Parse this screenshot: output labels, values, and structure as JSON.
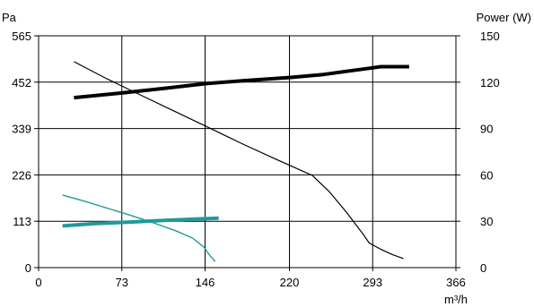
{
  "chart_data": {
    "type": "line",
    "title": "",
    "xlabel": "m³/h",
    "ylabel_left": "Pa",
    "ylabel_right": "Power (W)",
    "xlim": [
      0,
      366
    ],
    "ylim_left": [
      0,
      565
    ],
    "ylim_right": [
      0,
      150
    ],
    "x_ticks": [
      "0",
      "73",
      "146",
      "220",
      "293",
      "366"
    ],
    "x_tick_values": [
      0,
      73,
      146,
      220,
      293,
      366
    ],
    "y_left_ticks": [
      "0",
      "113",
      "226",
      "339",
      "452",
      "565"
    ],
    "y_left_tick_values": [
      0,
      113,
      226,
      339,
      452,
      565
    ],
    "y_right_ticks": [
      "0",
      "30",
      "60",
      "90",
      "120",
      "150"
    ],
    "y_right_tick_values": [
      0,
      30,
      60,
      90,
      120,
      150
    ],
    "grid": true,
    "series": [
      {
        "color": "#000000",
        "axis": "left",
        "width": 1.2,
        "x": [
          31,
          60,
          90,
          120,
          150,
          180,
          210,
          240,
          255,
          270,
          285,
          290,
          300,
          310,
          320
        ],
        "y": [
          502,
          460,
          420,
          380,
          340,
          300,
          262,
          225,
          185,
          135,
          80,
          60,
          45,
          32,
          22
        ]
      },
      {
        "color": "#000000",
        "axis": "right",
        "width": 4,
        "x": [
          31,
          73,
          110,
          146,
          180,
          220,
          250,
          270,
          290,
          300,
          325
        ],
        "y": [
          110,
          113,
          116,
          119,
          121,
          123,
          125,
          127,
          129,
          130,
          130
        ]
      },
      {
        "color": "#1e9a9a",
        "axis": "left",
        "width": 1.4,
        "x": [
          21,
          40,
          60,
          80,
          100,
          120,
          135,
          145,
          150,
          155
        ],
        "y": [
          177,
          162,
          145,
          128,
          110,
          90,
          72,
          50,
          30,
          15
        ]
      },
      {
        "color": "#1e9a9a",
        "axis": "right",
        "width": 4,
        "x": [
          21,
          50,
          80,
          110,
          140,
          158
        ],
        "y": [
          27,
          28.5,
          29.5,
          30.5,
          31.5,
          32
        ]
      }
    ]
  }
}
